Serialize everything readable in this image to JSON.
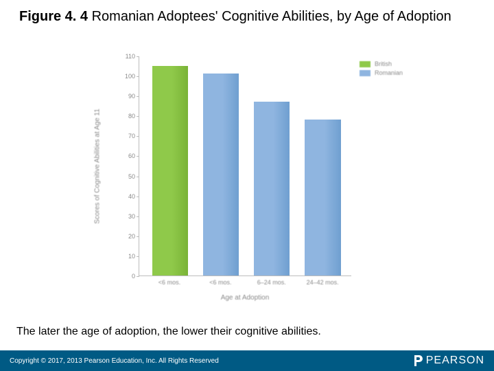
{
  "title": {
    "figure_label": "Figure 4. 4",
    "figure_text": " Romanian Adoptees' Cognitive Abilities, by Age of Adoption"
  },
  "chart": {
    "type": "bar",
    "background_color": "#ffffff",
    "axis_color": "#bcbcbc",
    "text_color": "#8a8a8a",
    "ylabel": "Scores of Cognitive Abilities at Age 11",
    "xlabel": "Age at Adoption",
    "ylim": [
      0,
      110
    ],
    "ytick_step": 10,
    "yticks": [
      0,
      10,
      20,
      30,
      40,
      50,
      60,
      70,
      80,
      90,
      100,
      110
    ],
    "categories": [
      "<6 mos.",
      "<6 mos.",
      "6–24 mos.",
      "24–42 mos."
    ],
    "series": [
      {
        "name": "British",
        "color": "#8fc94a",
        "values": [
          105,
          null,
          null,
          null
        ]
      },
      {
        "name": "Romanian",
        "color": "#8fb5e0",
        "values": [
          null,
          101,
          87,
          78
        ]
      }
    ],
    "bars": [
      {
        "x_pct": 6,
        "w_pct": 17,
        "value": 105,
        "color": "#8fc94a",
        "grad_to": "#7ab337"
      },
      {
        "x_pct": 30,
        "w_pct": 17,
        "value": 101,
        "color": "#8fb5e0",
        "grad_to": "#6f9fd0"
      },
      {
        "x_pct": 54,
        "w_pct": 17,
        "value": 87,
        "color": "#8fb5e0",
        "grad_to": "#6f9fd0"
      },
      {
        "x_pct": 78,
        "w_pct": 17,
        "value": 78,
        "color": "#8fb5e0",
        "grad_to": "#6f9fd0"
      }
    ],
    "bar_width_pct": 17,
    "legend": {
      "items": [
        {
          "label": "British",
          "color": "#8fc94a"
        },
        {
          "label": "Romanian",
          "color": "#8fb5e0"
        }
      ]
    },
    "label_fontsize": 10,
    "tick_fontsize": 9
  },
  "caption": "The later the age of adoption, the lower their cognitive abilities.",
  "footer": {
    "copyright": "Copyright © 2017, 2013 Pearson Education, Inc. All Rights Reserved",
    "brand": "PEARSON",
    "bg_color": "#005a84",
    "text_color": "#ffffff"
  }
}
